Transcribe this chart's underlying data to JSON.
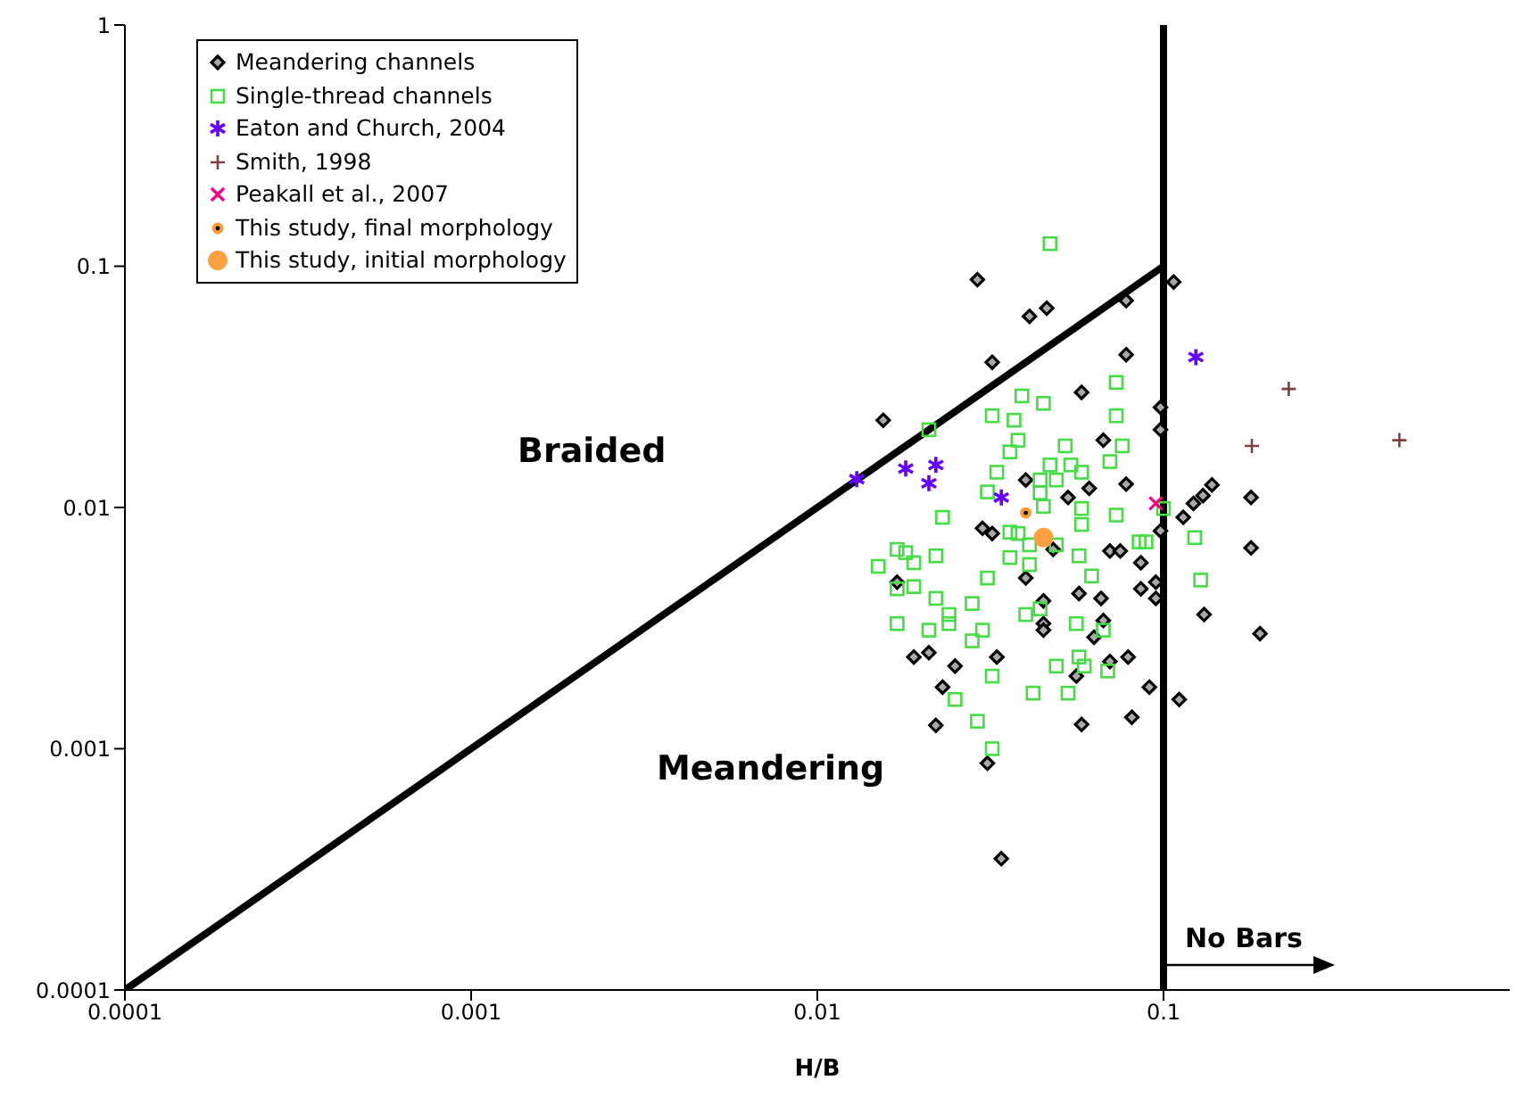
{
  "chart_data": {
    "type": "scatter",
    "xlabel": "H/B",
    "log": "xy",
    "xlim": [
      0.0001,
      1
    ],
    "ylim": [
      0.0001,
      1
    ],
    "xticks": [
      0.0001,
      0.001,
      0.01,
      0.1
    ],
    "yticks": [
      0.0001,
      0.001,
      0.01,
      0.1,
      1
    ],
    "legend": "top left",
    "annotations": [
      "Braided",
      "Meandering",
      "No Bars"
    ],
    "ref_lines": [
      {
        "axis": "x",
        "value": 0.1,
        "color": "#000000"
      }
    ],
    "series": [
      {
        "name": "Meandering channels",
        "color": "#000000",
        "marker": "diamond",
        "x": [
          0.029,
          0.041,
          0.046,
          0.032,
          0.0155,
          0.078,
          0.078,
          0.058,
          0.098,
          0.098,
          0.067,
          0.04,
          0.061,
          0.078,
          0.053,
          0.03,
          0.032,
          0.107,
          0.138,
          0.13,
          0.122,
          0.114,
          0.179,
          0.179,
          0.098,
          0.086,
          0.086,
          0.095,
          0.095,
          0.131,
          0.19,
          0.079,
          0.091,
          0.111,
          0.081,
          0.048,
          0.07,
          0.075,
          0.017,
          0.04,
          0.057,
          0.066,
          0.045,
          0.045,
          0.045,
          0.067,
          0.063,
          0.019,
          0.021,
          0.025,
          0.033,
          0.056,
          0.07,
          0.023,
          0.022,
          0.058,
          0.031,
          0.034
        ],
        "values": [
          0.088,
          0.062,
          0.067,
          0.04,
          0.023,
          0.072,
          0.043,
          0.03,
          0.026,
          0.021,
          0.019,
          0.013,
          0.012,
          0.0125,
          0.011,
          0.0082,
          0.0078,
          0.086,
          0.0124,
          0.0112,
          0.0104,
          0.0091,
          0.011,
          0.0068,
          0.008,
          0.0059,
          0.0046,
          0.0049,
          0.0042,
          0.0036,
          0.003,
          0.0024,
          0.0018,
          0.0016,
          0.00135,
          0.0067,
          0.0066,
          0.0066,
          0.0049,
          0.0051,
          0.0044,
          0.0042,
          0.0041,
          0.0033,
          0.0031,
          0.0034,
          0.0029,
          0.0024,
          0.0025,
          0.0022,
          0.0024,
          0.002,
          0.0023,
          0.0018,
          0.00125,
          0.00126,
          0.00087,
          0.00035
        ]
      },
      {
        "name": "Single-thread channels",
        "color": "#44dd44",
        "marker": "square",
        "x": [
          0.047,
          0.073,
          0.039,
          0.045,
          0.032,
          0.037,
          0.073,
          0.038,
          0.052,
          0.076,
          0.036,
          0.07,
          0.047,
          0.054,
          0.058,
          0.033,
          0.044,
          0.049,
          0.031,
          0.044,
          0.045,
          0.058,
          0.023,
          0.073,
          0.021,
          0.058,
          0.036,
          0.038,
          0.1,
          0.085,
          0.089,
          0.123,
          0.128,
          0.041,
          0.049,
          0.017,
          0.018,
          0.019,
          0.022,
          0.015,
          0.017,
          0.019,
          0.036,
          0.041,
          0.057,
          0.062,
          0.031,
          0.022,
          0.028,
          0.044,
          0.04,
          0.024,
          0.024,
          0.017,
          0.021,
          0.03,
          0.028,
          0.056,
          0.067,
          0.049,
          0.057,
          0.059,
          0.069,
          0.032,
          0.053,
          0.042,
          0.025,
          0.029,
          0.032
        ],
        "values": [
          0.124,
          0.033,
          0.029,
          0.027,
          0.024,
          0.023,
          0.024,
          0.019,
          0.018,
          0.018,
          0.017,
          0.0155,
          0.015,
          0.015,
          0.014,
          0.014,
          0.013,
          0.013,
          0.0116,
          0.0115,
          0.0101,
          0.0099,
          0.0091,
          0.0093,
          0.021,
          0.0085,
          0.0079,
          0.0078,
          0.0099,
          0.0072,
          0.0072,
          0.0075,
          0.005,
          0.007,
          0.007,
          0.0067,
          0.0065,
          0.0059,
          0.0063,
          0.0057,
          0.0046,
          0.0047,
          0.0062,
          0.0058,
          0.0063,
          0.0052,
          0.0051,
          0.0042,
          0.004,
          0.0038,
          0.0036,
          0.0036,
          0.0033,
          0.0033,
          0.0031,
          0.0031,
          0.0028,
          0.0033,
          0.0031,
          0.0022,
          0.0024,
          0.0022,
          0.0021,
          0.002,
          0.0017,
          0.0017,
          0.0016,
          0.0013,
          0.001
        ]
      },
      {
        "name": "Eaton and Church, 2004",
        "color": "#6600ff",
        "marker": "cross",
        "x": [
          0.013,
          0.018,
          0.022,
          0.021,
          0.034,
          0.124
        ],
        "values": [
          0.0131,
          0.0145,
          0.015,
          0.0126,
          0.011,
          0.042
        ]
      },
      {
        "name": "Smith, 1998",
        "color": "#804040",
        "marker": "plus",
        "x": [
          0.23,
          0.18,
          0.48
        ],
        "values": [
          0.031,
          0.018,
          0.019
        ]
      },
      {
        "name": "Peakall et al., 2007",
        "color": "#ff0080",
        "marker": "x",
        "x": [
          0.095
        ],
        "values": [
          0.0104
        ]
      },
      {
        "name": "This study, final morphology",
        "color": "#ff9933",
        "marker": "dotted-circle",
        "x": [
          0.04
        ],
        "values": [
          0.0095
        ]
      },
      {
        "name": "This study, initial morphology",
        "color": "#ffa040",
        "marker": "circle",
        "x": [
          0.045
        ],
        "values": [
          0.0075
        ]
      },
      {
        "type": "line",
        "color": "#000000",
        "line_style": "solid",
        "marker": "none",
        "x": [
          0.0001,
          0.1
        ],
        "values": [
          0.0001,
          0.1
        ]
      }
    ]
  }
}
